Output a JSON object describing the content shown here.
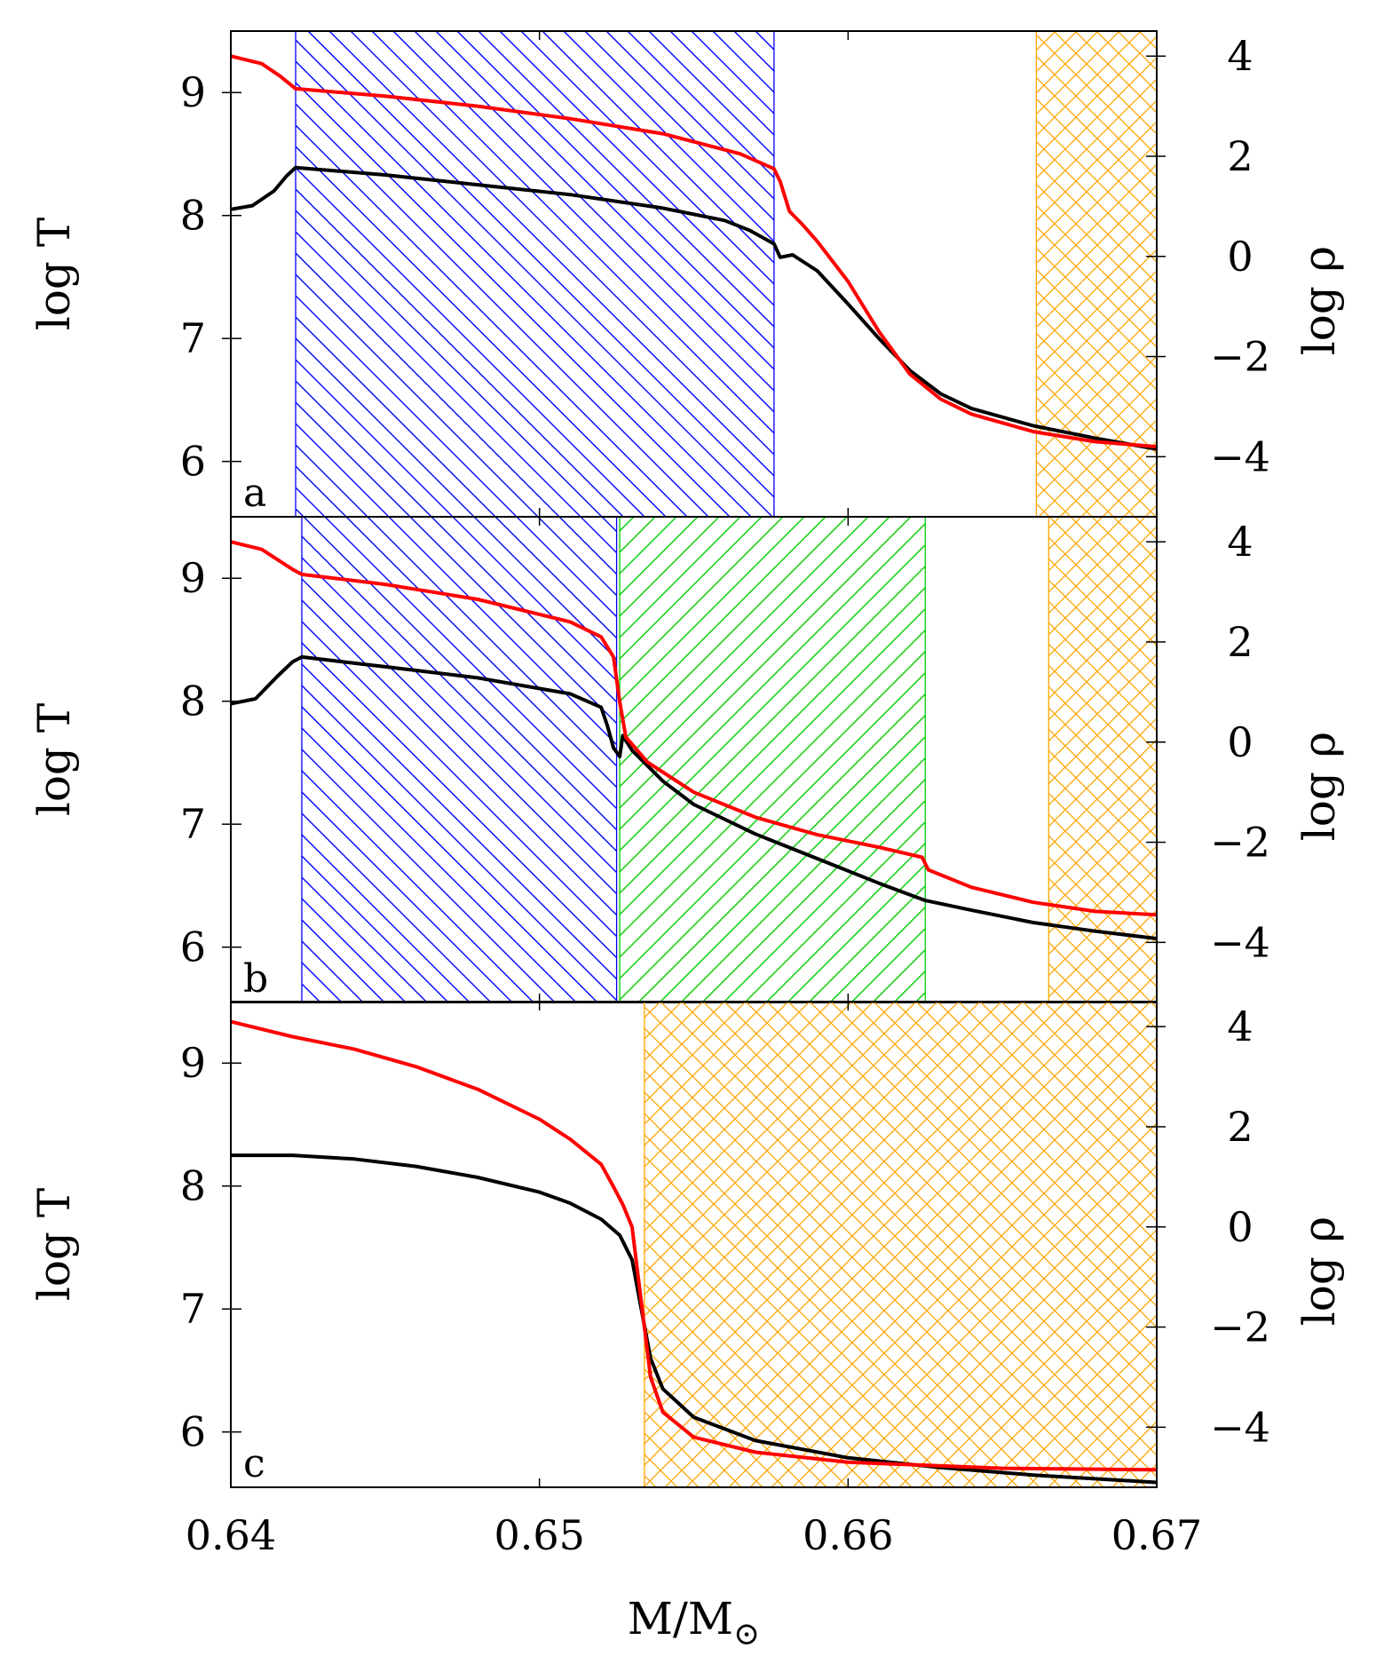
{
  "chart_data": {
    "type": "line",
    "x": {
      "label": "M/M",
      "label_subscript": "⊙",
      "range": [
        0.64,
        0.67
      ],
      "ticks": [
        0.64,
        0.65,
        0.66,
        0.67
      ],
      "tick_labels": [
        "0.64",
        "0.65",
        "0.66",
        "0.67"
      ]
    },
    "y_left": {
      "label": "log T",
      "range": [
        5.55,
        9.5
      ],
      "ticks": [
        6,
        7,
        8,
        9
      ],
      "tick_labels": [
        "6",
        "7",
        "8",
        "9"
      ]
    },
    "y_right": {
      "label": "log ρ",
      "range": [
        -5.2,
        4.5
      ],
      "ticks": [
        -4,
        -2,
        0,
        2,
        4
      ],
      "tick_labels": [
        "−4",
        "−2",
        "0",
        "2",
        "4"
      ]
    },
    "series_colors": {
      "logT": "#000000",
      "logRho": "#ff0000"
    },
    "region_colors": {
      "blue": "#0000ff",
      "green": "#00cc00",
      "orange": "#ffa500"
    },
    "panels": [
      {
        "label": "a",
        "regions": [
          {
            "color": "blue",
            "pattern": "diag-down",
            "x0": 0.6421,
            "x1": 0.6576
          },
          {
            "color": "orange",
            "pattern": "crosshatch",
            "x0": 0.6661,
            "x1": 0.67
          }
        ],
        "series": [
          {
            "name": "log T",
            "axis": "left",
            "color": "logT",
            "points": [
              [
                0.64,
                8.05
              ],
              [
                0.6407,
                8.08
              ],
              [
                0.6414,
                8.2
              ],
              [
                0.6418,
                8.32
              ],
              [
                0.6421,
                8.39
              ],
              [
                0.645,
                8.33
              ],
              [
                0.648,
                8.25
              ],
              [
                0.651,
                8.17
              ],
              [
                0.654,
                8.06
              ],
              [
                0.656,
                7.96
              ],
              [
                0.6568,
                7.88
              ],
              [
                0.6576,
                7.77
              ],
              [
                0.6578,
                7.66
              ],
              [
                0.6582,
                7.68
              ],
              [
                0.659,
                7.55
              ],
              [
                0.66,
                7.28
              ],
              [
                0.661,
                7.0
              ],
              [
                0.662,
                6.74
              ],
              [
                0.663,
                6.55
              ],
              [
                0.664,
                6.43
              ],
              [
                0.666,
                6.29
              ],
              [
                0.668,
                6.19
              ],
              [
                0.67,
                6.1
              ]
            ]
          },
          {
            "name": "log ρ",
            "axis": "right",
            "color": "logRho",
            "points": [
              [
                0.64,
                4.0
              ],
              [
                0.641,
                3.85
              ],
              [
                0.6416,
                3.6
              ],
              [
                0.6421,
                3.35
              ],
              [
                0.645,
                3.2
              ],
              [
                0.648,
                3.0
              ],
              [
                0.651,
                2.75
              ],
              [
                0.654,
                2.45
              ],
              [
                0.6565,
                2.05
              ],
              [
                0.6576,
                1.75
              ],
              [
                0.6578,
                1.5
              ],
              [
                0.6581,
                0.9
              ],
              [
                0.6585,
                0.65
              ],
              [
                0.659,
                0.3
              ],
              [
                0.66,
                -0.5
              ],
              [
                0.661,
                -1.5
              ],
              [
                0.662,
                -2.35
              ],
              [
                0.663,
                -2.85
              ],
              [
                0.664,
                -3.15
              ],
              [
                0.666,
                -3.5
              ],
              [
                0.668,
                -3.7
              ],
              [
                0.67,
                -3.8
              ]
            ]
          }
        ]
      },
      {
        "label": "b",
        "regions": [
          {
            "color": "blue",
            "pattern": "diag-down",
            "x0": 0.6423,
            "x1": 0.6525
          },
          {
            "color": "green",
            "pattern": "diag-up",
            "x0": 0.6526,
            "x1": 0.6625
          },
          {
            "color": "orange",
            "pattern": "crosshatch",
            "x0": 0.6665,
            "x1": 0.67
          }
        ],
        "series": [
          {
            "name": "log T",
            "axis": "left",
            "color": "logT",
            "points": [
              [
                0.64,
                7.98
              ],
              [
                0.6408,
                8.02
              ],
              [
                0.6415,
                8.2
              ],
              [
                0.642,
                8.32
              ],
              [
                0.6423,
                8.36
              ],
              [
                0.645,
                8.28
              ],
              [
                0.648,
                8.19
              ],
              [
                0.651,
                8.06
              ],
              [
                0.652,
                7.95
              ],
              [
                0.6522,
                7.8
              ],
              [
                0.6524,
                7.62
              ],
              [
                0.6526,
                7.55
              ],
              [
                0.6527,
                7.72
              ],
              [
                0.653,
                7.6
              ],
              [
                0.654,
                7.35
              ],
              [
                0.655,
                7.16
              ],
              [
                0.657,
                6.92
              ],
              [
                0.659,
                6.72
              ],
              [
                0.661,
                6.52
              ],
              [
                0.6625,
                6.38
              ],
              [
                0.664,
                6.3
              ],
              [
                0.666,
                6.2
              ],
              [
                0.668,
                6.13
              ],
              [
                0.67,
                6.07
              ]
            ]
          },
          {
            "name": "log ρ",
            "axis": "right",
            "color": "logRho",
            "points": [
              [
                0.64,
                4.0
              ],
              [
                0.641,
                3.85
              ],
              [
                0.642,
                3.45
              ],
              [
                0.6423,
                3.35
              ],
              [
                0.645,
                3.15
              ],
              [
                0.648,
                2.85
              ],
              [
                0.651,
                2.4
              ],
              [
                0.652,
                2.1
              ],
              [
                0.6524,
                1.7
              ],
              [
                0.6526,
                0.8
              ],
              [
                0.6528,
                0.1
              ],
              [
                0.6535,
                -0.4
              ],
              [
                0.655,
                -1.0
              ],
              [
                0.657,
                -1.5
              ],
              [
                0.659,
                -1.85
              ],
              [
                0.661,
                -2.1
              ],
              [
                0.6624,
                -2.3
              ],
              [
                0.6626,
                -2.55
              ],
              [
                0.664,
                -2.9
              ],
              [
                0.666,
                -3.2
              ],
              [
                0.668,
                -3.38
              ],
              [
                0.67,
                -3.45
              ]
            ]
          }
        ]
      },
      {
        "label": "c",
        "regions": [
          {
            "color": "orange",
            "pattern": "crosshatch",
            "x0": 0.6534,
            "x1": 0.67
          }
        ],
        "series": [
          {
            "name": "log T",
            "axis": "left",
            "color": "logT",
            "points": [
              [
                0.64,
                8.25
              ],
              [
                0.642,
                8.25
              ],
              [
                0.644,
                8.22
              ],
              [
                0.646,
                8.16
              ],
              [
                0.648,
                8.07
              ],
              [
                0.65,
                7.95
              ],
              [
                0.651,
                7.86
              ],
              [
                0.652,
                7.73
              ],
              [
                0.6526,
                7.6
              ],
              [
                0.653,
                7.4
              ],
              [
                0.6533,
                7.0
              ],
              [
                0.6536,
                6.6
              ],
              [
                0.654,
                6.35
              ],
              [
                0.655,
                6.12
              ],
              [
                0.657,
                5.93
              ],
              [
                0.66,
                5.79
              ],
              [
                0.663,
                5.71
              ],
              [
                0.666,
                5.65
              ],
              [
                0.67,
                5.59
              ]
            ]
          },
          {
            "name": "log ρ",
            "axis": "right",
            "color": "logRho",
            "points": [
              [
                0.64,
                4.1
              ],
              [
                0.642,
                3.8
              ],
              [
                0.644,
                3.55
              ],
              [
                0.646,
                3.2
              ],
              [
                0.648,
                2.75
              ],
              [
                0.65,
                2.15
              ],
              [
                0.651,
                1.75
              ],
              [
                0.652,
                1.25
              ],
              [
                0.6524,
                0.8
              ],
              [
                0.6527,
                0.45
              ],
              [
                0.653,
                0.0
              ],
              [
                0.6532,
                -1.0
              ],
              [
                0.6534,
                -2.0
              ],
              [
                0.6536,
                -3.0
              ],
              [
                0.654,
                -3.7
              ],
              [
                0.655,
                -4.2
              ],
              [
                0.657,
                -4.5
              ],
              [
                0.66,
                -4.7
              ],
              [
                0.665,
                -4.82
              ],
              [
                0.67,
                -4.85
              ]
            ]
          }
        ]
      }
    ]
  }
}
